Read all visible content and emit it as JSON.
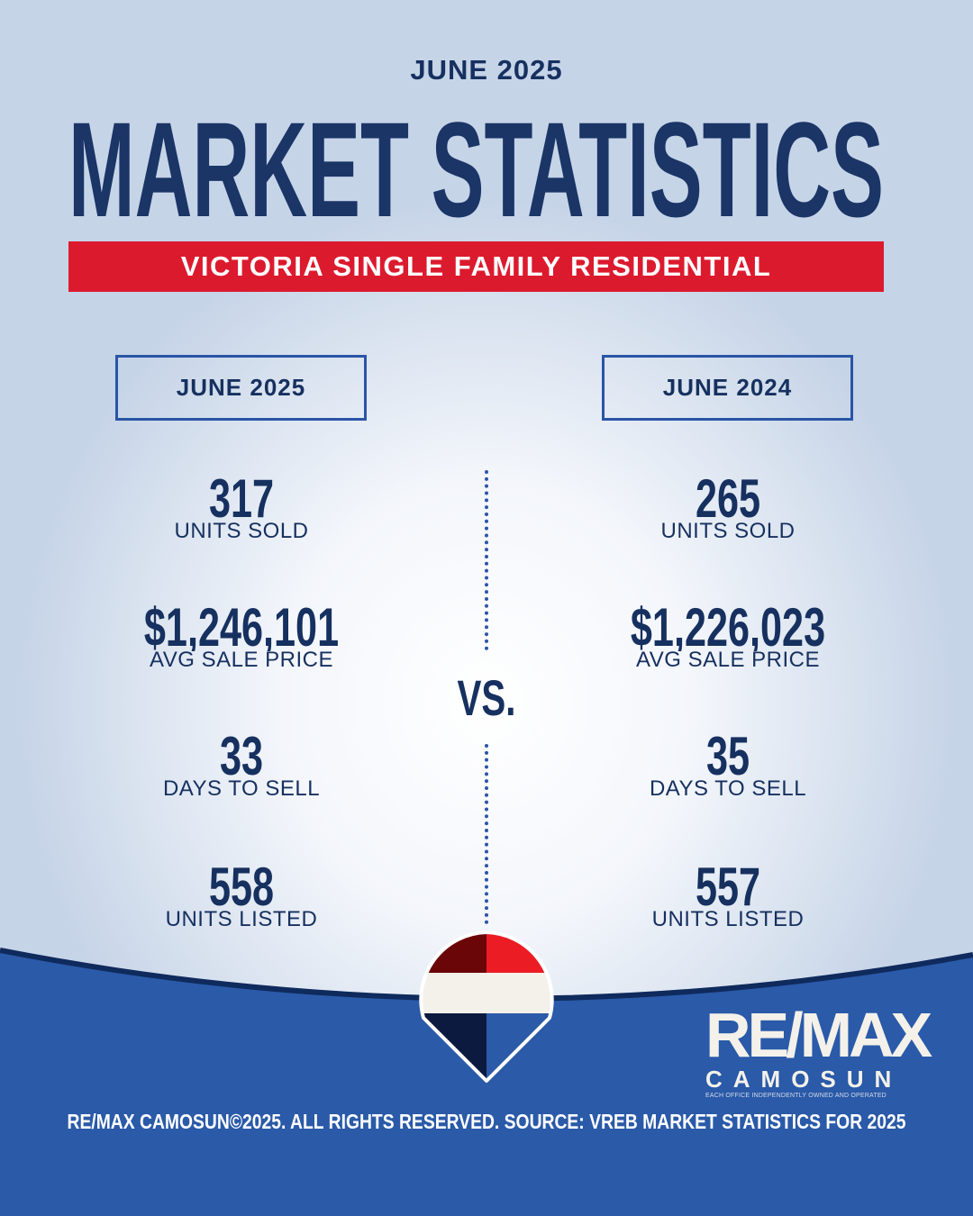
{
  "header": {
    "date": "JUNE 2025",
    "title": "MARKET STATISTICS",
    "banner": "VICTORIA SINGLE FAMILY RESIDENTIAL"
  },
  "left": {
    "period": "JUNE 2025",
    "stats": [
      {
        "value": "317",
        "label": "UNITS SOLD"
      },
      {
        "value": "$1,246,101",
        "label": "AVG SALE PRICE"
      },
      {
        "value": "33",
        "label": "DAYS TO SELL"
      },
      {
        "value": "558",
        "label": "UNITS LISTED"
      }
    ]
  },
  "right": {
    "period": "JUNE 2024",
    "stats": [
      {
        "value": "265",
        "label": "UNITS SOLD"
      },
      {
        "value": "$1,226,023",
        "label": "AVG SALE PRICE"
      },
      {
        "value": "35",
        "label": "DAYS TO SELL"
      },
      {
        "value": "557",
        "label": "UNITS LISTED"
      }
    ]
  },
  "vs": "VS.",
  "logo": {
    "brand": "RE/MAX",
    "name": "CAMOSUN",
    "tagline": "EACH OFFICE INDEPENDENTLY OWNED AND OPERATED"
  },
  "footer": "RE/MAX CAMOSUN©2025. ALL RIGHTS RESERVED. SOURCE: VREB MARKET STATISTICS FOR 2025",
  "colors": {
    "navy": "#16305f",
    "red": "#dc1a2e",
    "blue": "#2a5aa8"
  }
}
